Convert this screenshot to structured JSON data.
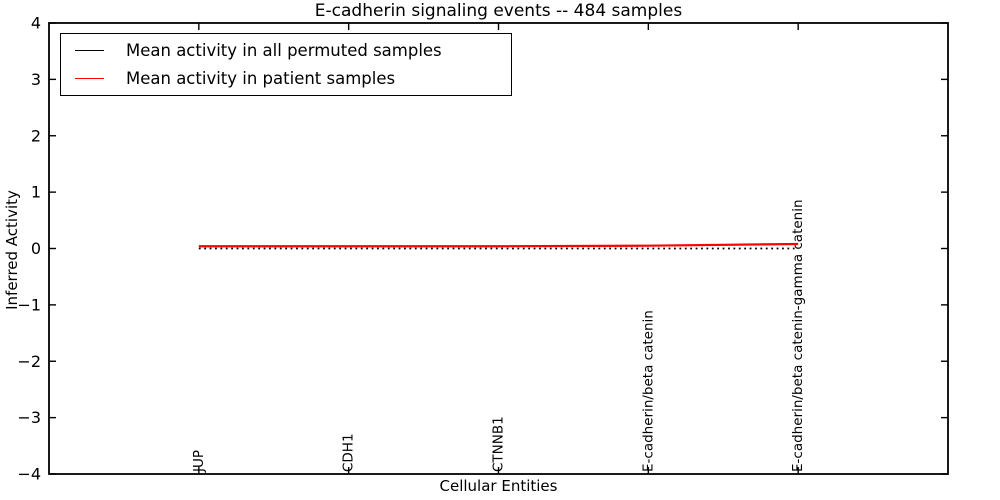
{
  "chart_data": {
    "type": "line",
    "title": "E-cadherin signaling events -- 484 samples",
    "xlabel": "Cellular Entities",
    "ylabel": "Inferred Activity",
    "categories": [
      "JUP",
      "CDH1",
      "CTNNB1",
      "E-cadherin/beta catenin",
      "E-cadherin/beta catenin-gamma catenin"
    ],
    "x_positions": [
      0,
      1,
      2,
      3,
      4
    ],
    "xlim": [
      -1,
      5
    ],
    "ylim": [
      -4,
      4
    ],
    "yticks": [
      4,
      3,
      2,
      1,
      0,
      -1,
      -2,
      -3,
      -4
    ],
    "grid": false,
    "legend_position": "upper left",
    "axis_color": "#000000",
    "background_color": "#ffffff",
    "series": [
      {
        "name": "Mean activity in all permuted samples",
        "color": "#000000",
        "linestyle": "dotted",
        "values": [
          0,
          0,
          0,
          0,
          0
        ]
      },
      {
        "name": "Mean activity in patient samples",
        "color": "#ff0000",
        "linestyle": "solid",
        "values": [
          0.04,
          0.04,
          0.04,
          0.05,
          0.08
        ]
      }
    ]
  }
}
